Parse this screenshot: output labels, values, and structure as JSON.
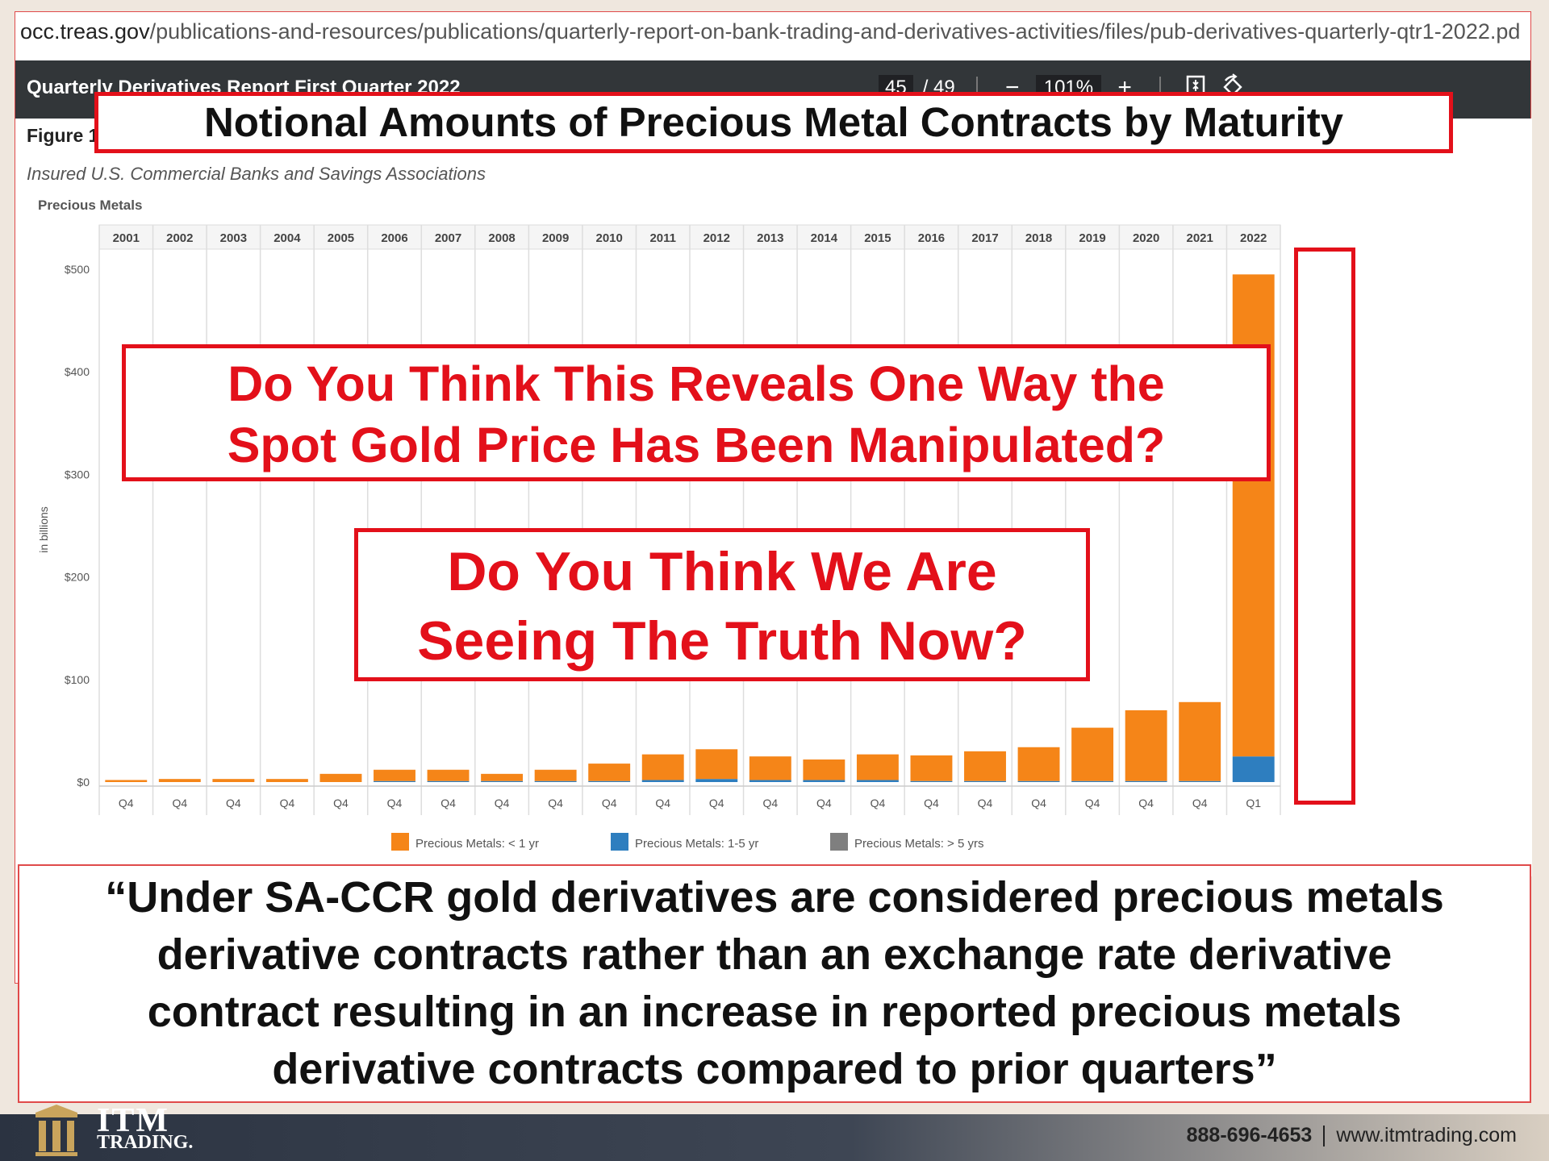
{
  "browser": {
    "url_host": "occ.treas.gov",
    "url_path": "/publications-and-resources/publications/quarterly-report-on-bank-trading-and-derivatives-activities/files/pub-derivatives-quarterly-qtr1-2022.pd"
  },
  "pdf_viewer": {
    "title": "Quarterly Derivatives Report First Quarter 2022",
    "page_current": "45",
    "page_total": "/ 49",
    "zoom": "101%",
    "zoom_out_label": "−",
    "zoom_in_label": "+",
    "fit_icon": "fit-page-icon",
    "rotate_icon": "rotate-icon"
  },
  "page": {
    "figure_label": "Figure 1",
    "subtitle": "Insured U.S. Commercial Banks and Savings Associations",
    "panel_label": "Precious Metals"
  },
  "callouts": {
    "title": "Notional Amounts of Precious Metal Contracts by Maturity",
    "question1_line1": "Do You Think This Reveals One Way the",
    "question1_line2": "Spot Gold Price Has Been Manipulated?",
    "question2_line1": "Do You Think We Are",
    "question2_line2": "Seeing The Truth Now?",
    "quote_line1": "“Under SA-CCR gold derivatives are considered precious metals",
    "quote_line2": "derivative contracts rather than an exchange rate derivative",
    "quote_line3": "contract resulting in an increase in reported precious metals",
    "quote_line4": "derivative contracts compared to prior quarters”"
  },
  "chart_data": {
    "type": "bar",
    "stacked": true,
    "year_headers": [
      "2001",
      "2002",
      "2003",
      "2004",
      "2005",
      "2006",
      "2007",
      "2008",
      "2009",
      "2010",
      "2011",
      "2012",
      "2013",
      "2014",
      "2015",
      "2016",
      "2017",
      "2018",
      "2019",
      "2020",
      "2021",
      "2022"
    ],
    "categories": [
      "Q4",
      "Q4",
      "Q4",
      "Q4",
      "Q4",
      "Q4",
      "Q4",
      "Q4",
      "Q4",
      "Q4",
      "Q4",
      "Q4",
      "Q4",
      "Q4",
      "Q4",
      "Q4",
      "Q4",
      "Q4",
      "Q4",
      "Q4",
      "Q4",
      "Q1"
    ],
    "ylabel": "in billions",
    "ylim": [
      0,
      500
    ],
    "yticks": [
      "$0",
      "$100",
      "$200",
      "$300",
      "$400",
      "$500"
    ],
    "ytick_values": [
      0,
      100,
      200,
      300,
      400,
      500
    ],
    "grid": true,
    "legend_position": "bottom",
    "series": [
      {
        "name": "Precious Metals: < 1 yr",
        "color": "#f58518",
        "values": [
          2,
          3,
          3,
          3,
          8,
          11,
          11,
          7,
          11,
          17,
          25,
          29,
          23,
          20,
          25,
          25,
          29,
          33,
          52,
          69,
          77,
          470
        ]
      },
      {
        "name": "Precious Metals: 1-5 yr",
        "color": "#2e7ebf",
        "values": [
          0,
          0,
          0,
          0,
          0,
          1,
          1,
          1,
          1,
          1,
          2,
          3,
          2,
          2,
          2,
          1,
          1,
          1,
          1,
          1,
          1,
          25
        ]
      },
      {
        "name": "Precious Metals: > 5 yrs",
        "color": "#7f7f7f",
        "values": [
          0,
          0,
          0,
          0,
          0,
          0,
          0,
          0,
          0,
          0,
          0,
          0,
          0,
          0,
          0,
          0,
          0,
          0,
          0,
          0,
          0,
          0
        ]
      }
    ]
  },
  "footer": {
    "logo_itm": "ITM",
    "logo_trading": "TRADING.",
    "phone": "888-696-4653",
    "website": "www.itmtrading.com"
  }
}
